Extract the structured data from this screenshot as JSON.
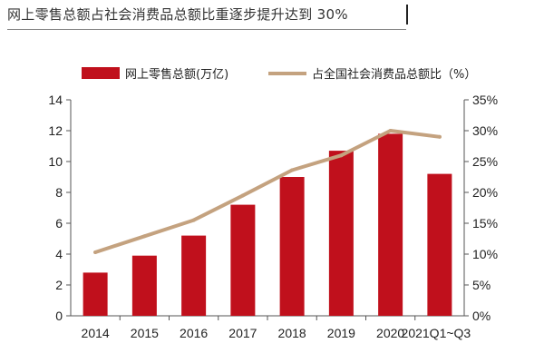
{
  "title": "网上零售总额占社会消费品总额比重逐步提升达到 30%",
  "chart_data": {
    "type": "bar",
    "categories": [
      "2014",
      "2015",
      "2016",
      "2017",
      "2018",
      "2019",
      "2020",
      "2021Q1~Q3"
    ],
    "series": [
      {
        "name": "网上零售总额(万亿)",
        "type": "bar",
        "axis": "left",
        "color": "#c0101c",
        "values": [
          2.8,
          3.9,
          5.2,
          7.2,
          9.0,
          10.7,
          11.8,
          9.2
        ]
      },
      {
        "name": "占全国社会消费品总额比（%）",
        "type": "line",
        "axis": "right",
        "color": "#c4a27f",
        "values": [
          10.3,
          12.9,
          15.5,
          19.5,
          23.6,
          26.0,
          30.0,
          29.0
        ]
      }
    ],
    "y_left": {
      "ylim": [
        0,
        14
      ],
      "ticks": [
        "0",
        "2",
        "4",
        "6",
        "8",
        "10",
        "12",
        "14"
      ]
    },
    "y_right": {
      "ylim": [
        0,
        35
      ],
      "ticks": [
        "0%",
        "5%",
        "10%",
        "15%",
        "20%",
        "25%",
        "30%",
        "35%"
      ]
    },
    "legend": "top",
    "grid": false
  }
}
